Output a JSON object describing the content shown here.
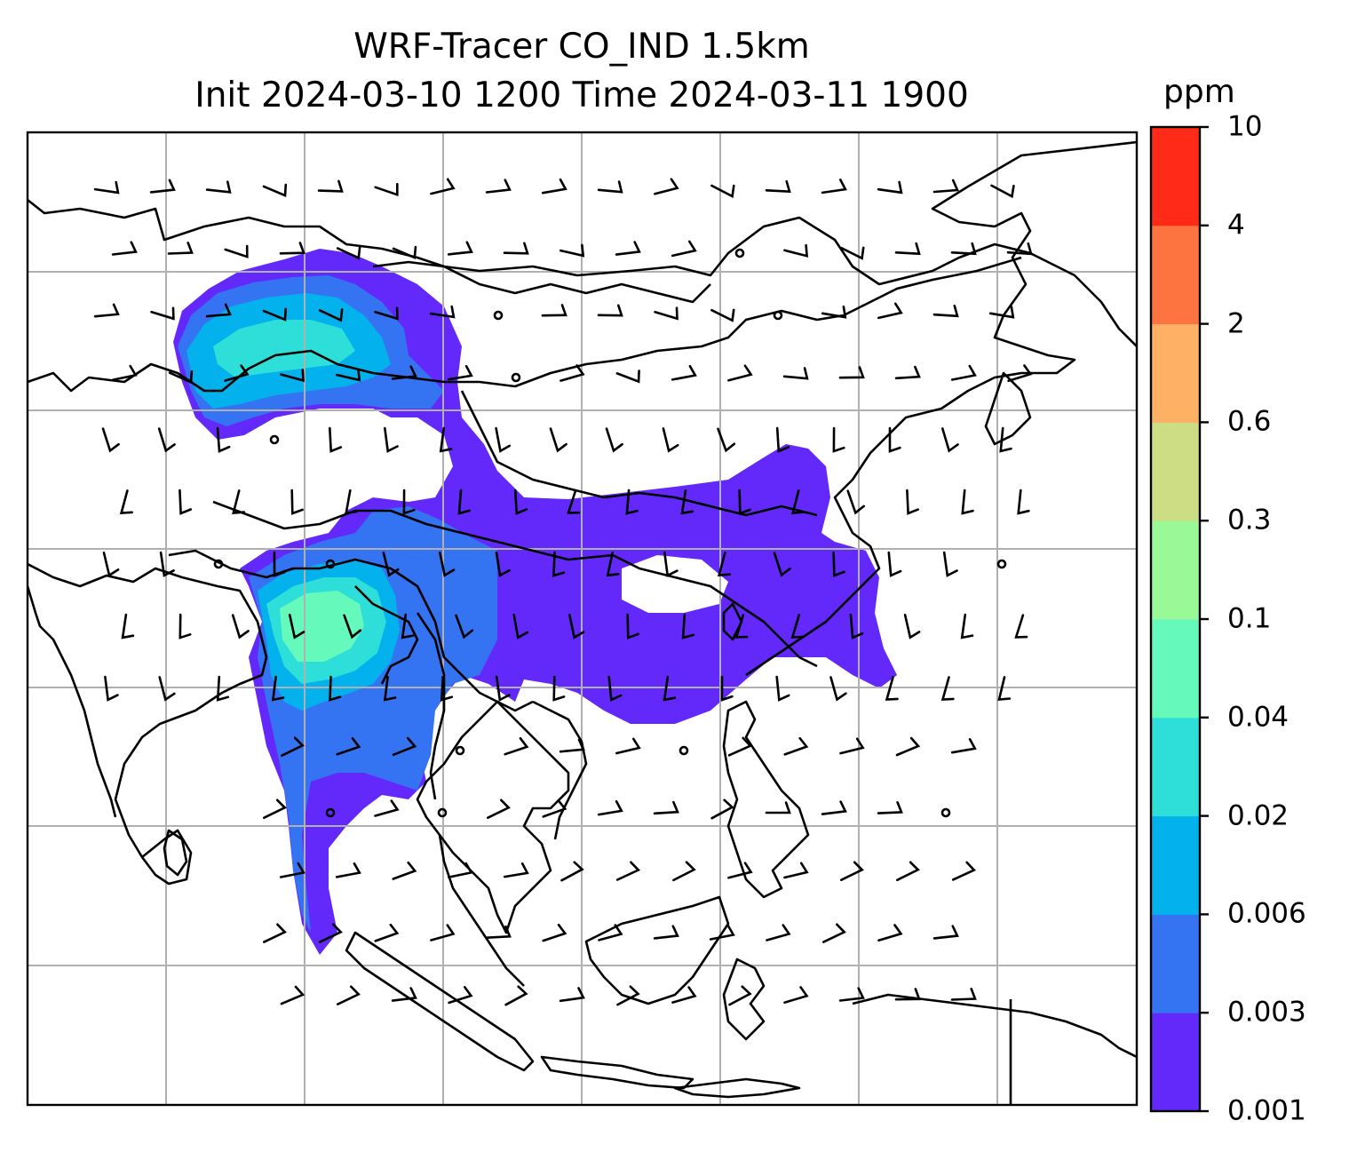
{
  "title": {
    "line1": "WRF-Tracer CO_IND 1.5km",
    "line2": "Init 2024-03-10 1200 Time 2024-03-11 1900"
  },
  "colorbar": {
    "units": "ppm",
    "levels": [
      "0.001",
      "0.003",
      "0.006",
      "0.02",
      "0.04",
      "0.1",
      "0.3",
      "0.6",
      "2",
      "4",
      "10"
    ],
    "colors": [
      "#6328fa",
      "#3474f2",
      "#03b2ec",
      "#2ddfd8",
      "#66f9bc",
      "#99f996",
      "#ccdd84",
      "#feb064",
      "#fe7440",
      "#ff2a17"
    ]
  },
  "colors": {
    "coastline": "#000000",
    "gridline": "#b0b0b0",
    "wind_barb": "#000000"
  }
}
